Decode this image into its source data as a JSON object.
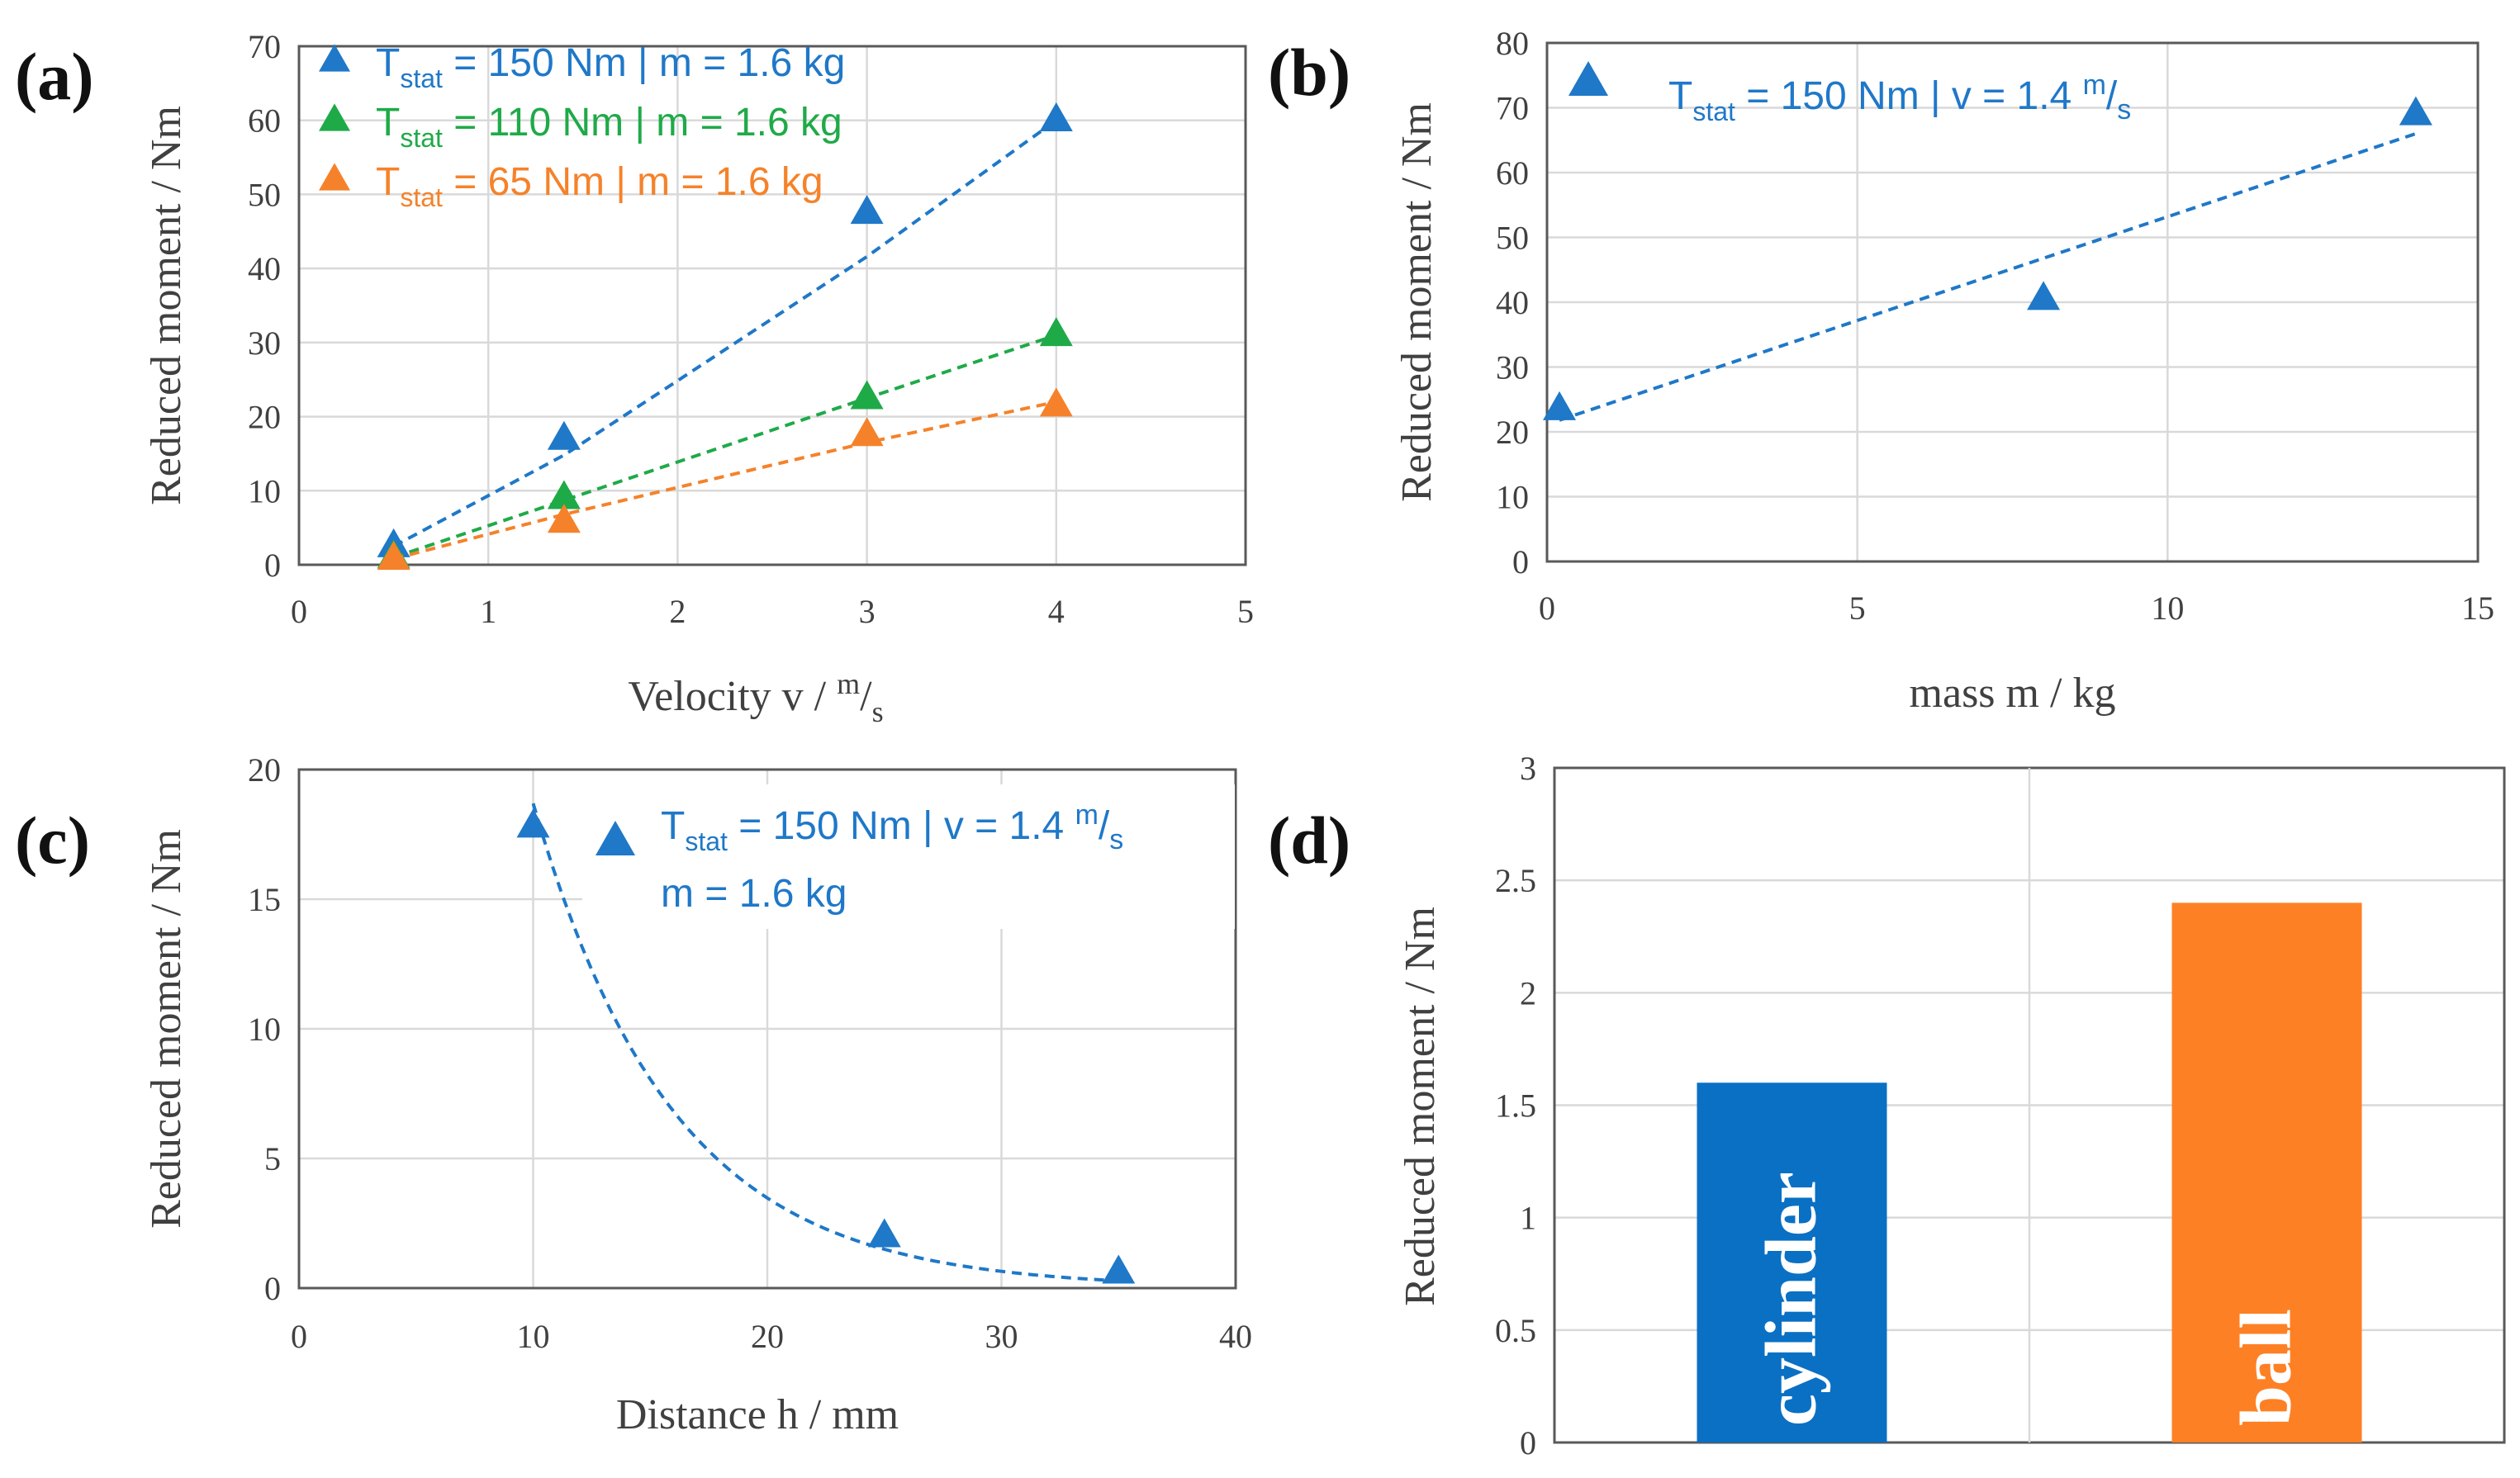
{
  "colors": {
    "blue": "#1f78c8",
    "green": "#1faa48",
    "orange": "#f5822a",
    "bar_blue": "#0a70c4",
    "bar_orange": "#fe8024"
  },
  "chart_data": [
    {
      "panel": "(a)",
      "type": "scatter",
      "xlabel": "Velocity v / ",
      "xlabel_unit_num": "m",
      "xlabel_unit_den": "s",
      "ylabel": "Reduced moment / Nm",
      "xlim": [
        0,
        5
      ],
      "ylim": [
        0,
        70
      ],
      "xticks": [
        "0",
        "1",
        "2",
        "3",
        "4",
        "5"
      ],
      "yticks": [
        "0",
        "10",
        "20",
        "30",
        "40",
        "50",
        "60",
        "70"
      ],
      "series": [
        {
          "name": "Tstat = 150 Nm | m = 1.6 kg",
          "legend_main": "T",
          "legend_sub": "stat",
          "legend_rest": " = 150 Nm | m = 1.6 kg",
          "color": "#1f78c8",
          "x": [
            0.5,
            1.4,
            3,
            4
          ],
          "y": [
            2.5,
            17,
            47.5,
            60
          ],
          "trend_y": [
            2.5,
            14.8,
            41.6,
            60
          ]
        },
        {
          "name": "Tstat = 110 Nm | m = 1.6 kg",
          "legend_main": "T",
          "legend_sub": "stat",
          "legend_rest": " = 110 Nm | m = 1.6 kg",
          "color": "#1faa48",
          "x": [
            0.5,
            1.4,
            3,
            4
          ],
          "y": [
            1,
            9,
            22.5,
            31
          ],
          "trend_y": [
            1,
            8.7,
            22.5,
            31
          ]
        },
        {
          "name": "Tstat = 65 Nm | m = 1.6 kg",
          "legend_main": "T",
          "legend_sub": "stat",
          "legend_rest": " = 65 Nm | m = 1.6 kg",
          "color": "#f5822a",
          "x": [
            0.5,
            1.4,
            3,
            4
          ],
          "y": [
            0.8,
            5.8,
            17.5,
            21.5
          ],
          "trend_y": [
            0.8,
            6.8,
            16.5,
            22
          ]
        }
      ]
    },
    {
      "panel": "(b)",
      "type": "scatter",
      "xlabel": "mass m / kg",
      "ylabel": "Reduced moment / Nm",
      "xlim": [
        0,
        15
      ],
      "ylim": [
        0,
        80
      ],
      "xticks": [
        "0",
        "5",
        "10",
        "15"
      ],
      "yticks": [
        "0",
        "10",
        "20",
        "30",
        "40",
        "50",
        "60",
        "70",
        "80"
      ],
      "series": [
        {
          "name": "Tstat = 150 Nm | v = 1.4 m/s",
          "legend_main": "T",
          "legend_sub": "stat",
          "legend_rest": " = 150 Nm | v = 1.4 ",
          "legend_frac_num": "m",
          "legend_frac_den": "s",
          "color": "#1f78c8",
          "x": [
            0.2,
            8,
            14
          ],
          "y": [
            23.5,
            40.5,
            69
          ],
          "trend_x": [
            0.2,
            14
          ],
          "trend_y": [
            21.8,
            66
          ]
        }
      ]
    },
    {
      "panel": "(c)",
      "type": "scatter",
      "xlabel": "Distance h / mm",
      "ylabel": "Reduced moment / Nm",
      "xlim": [
        0,
        40
      ],
      "ylim": [
        0,
        20
      ],
      "xticks": [
        "0",
        "10",
        "20",
        "30",
        "40"
      ],
      "yticks": [
        "0",
        "5",
        "10",
        "15",
        "20"
      ],
      "series": [
        {
          "name": "Tstat = 150 Nm | v = 1.4 m/s, m = 1.6 kg",
          "legend_main": "T",
          "legend_sub": "stat",
          "legend_rest": " = 150 Nm | v = 1.4 ",
          "legend_frac_num": "m",
          "legend_frac_den": "s",
          "legend_line2": "m = 1.6 kg",
          "color": "#1f78c8",
          "x": [
            10,
            25,
            35
          ],
          "y": [
            17.8,
            2,
            0.6
          ],
          "trend": "exponential",
          "trend_a": 100.6,
          "trend_b": 0.1683
        }
      ]
    },
    {
      "panel": "(d)",
      "type": "bar",
      "ylabel": "Reduced moment / Nm",
      "ylim": [
        0,
        3
      ],
      "yticks": [
        "0",
        "0.5",
        "1",
        "1.5",
        "2",
        "2.5",
        "3"
      ],
      "categories": [
        "cylinder",
        "ball"
      ],
      "values": [
        1.6,
        2.4
      ],
      "colors": [
        "#0a70c4",
        "#fe8024"
      ]
    }
  ]
}
